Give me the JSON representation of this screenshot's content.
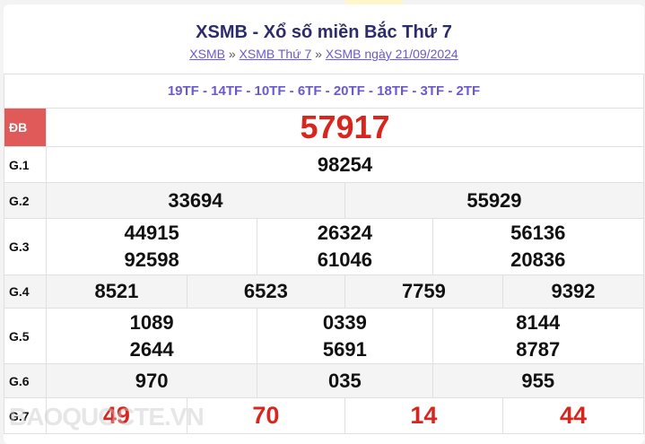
{
  "title": "XSMB - Xổ số miền Bắc Thứ 7",
  "breadcrumb": [
    "XSMB",
    "XSMB Thứ 7",
    "XSMB ngày 21/09/2024"
  ],
  "separator": "»",
  "codes": "19TF - 14TF - 10TF - 6TF - 20TF - 18TF - 3TF - 2TF",
  "prizes": {
    "db": {
      "label": "ĐB",
      "values": [
        "57917"
      ]
    },
    "g1": {
      "label": "G.1",
      "values": [
        "98254"
      ]
    },
    "g2": {
      "label": "G.2",
      "values": [
        "33694",
        "55929"
      ]
    },
    "g3": {
      "label": "G.3",
      "values": [
        "44915",
        "26324",
        "56136",
        "92598",
        "61046",
        "20836"
      ]
    },
    "g4": {
      "label": "G.4",
      "values": [
        "8521",
        "6523",
        "7759",
        "9392"
      ]
    },
    "g5": {
      "label": "G.5",
      "values": [
        "1089",
        "0339",
        "8144",
        "2644",
        "5691",
        "8787"
      ]
    },
    "g6": {
      "label": "G.6",
      "values": [
        "970",
        "035",
        "955"
      ]
    },
    "g7": {
      "label": "G.7",
      "values": [
        "49",
        "70",
        "14",
        "44"
      ]
    }
  },
  "watermark": "BAOQUOCTE.VN",
  "colors": {
    "accent": "#d8261e",
    "db_bg": "#e05a5a",
    "link": "#6a5acd"
  }
}
